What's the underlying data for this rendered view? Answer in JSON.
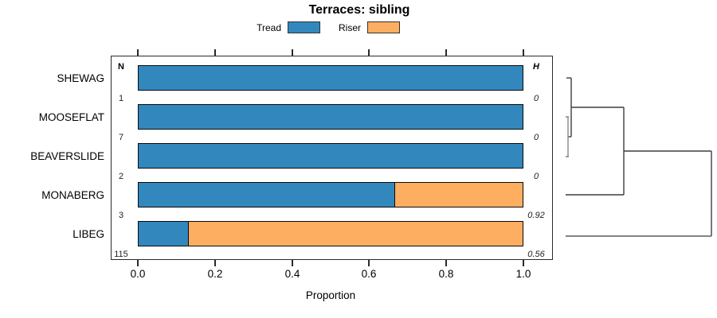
{
  "title": "Terraces: sibling",
  "legend": {
    "items": [
      {
        "label": "Tread",
        "color": "#3288BD"
      },
      {
        "label": "Riser",
        "color": "#FDAE61"
      }
    ]
  },
  "axis": {
    "label": "Proportion",
    "ticks": [
      "0.0",
      "0.2",
      "0.4",
      "0.6",
      "0.8",
      "1.0"
    ]
  },
  "columns": {
    "n_header": "N",
    "h_header": "H"
  },
  "chart_data": {
    "type": "bar",
    "orientation": "horizontal",
    "stacked": true,
    "title": "Terraces: sibling",
    "xlabel": "Proportion",
    "xlim": [
      0,
      1
    ],
    "grid": false,
    "legend_position": "top",
    "categories": [
      "SHEWAG",
      "MOOSEFLAT",
      "BEAVERSLIDE",
      "MONABERG",
      "LIBEG"
    ],
    "series": [
      {
        "name": "Tread",
        "color": "#3288BD",
        "values": [
          1.0,
          1.0,
          1.0,
          0.665,
          0.128
        ]
      },
      {
        "name": "Riser",
        "color": "#FDAE61",
        "values": [
          0.0,
          0.0,
          0.0,
          0.335,
          0.872
        ]
      }
    ],
    "n_values": [
      "1",
      "7",
      "2",
      "3",
      "115"
    ],
    "h_values": [
      "0",
      "0",
      "0",
      "0.92",
      "0.56"
    ],
    "dendrogram": {
      "position": "right-of-plot",
      "leaves_top_to_bottom": [
        "SHEWAG",
        "MOOSEFLAT",
        "BEAVERSLIDE",
        "MONABERG",
        "LIBEG"
      ],
      "merges_in_order": [
        "MOOSEFLAT + BEAVERSLIDE (height ~0)",
        "SHEWAG + {MOOSEFLAT,BEAVERSLIDE} (small height)",
        "{SHEWAG,MOOSEFLAT,BEAVERSLIDE} + MONABERG (medium height)",
        "{SHEWAG,MOOSEFLAT,BEAVERSLIDE,MONABERG} + LIBEG (root, max height)"
      ]
    }
  }
}
